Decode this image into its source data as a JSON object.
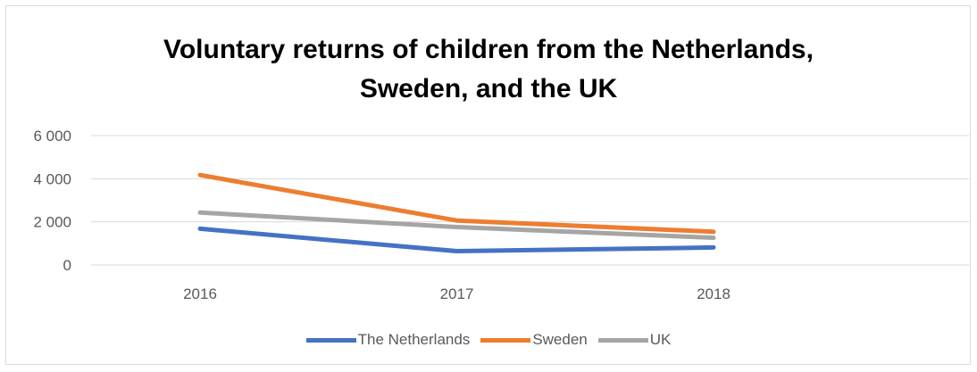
{
  "chart_data": {
    "type": "line",
    "title_line1": "Voluntary returns of children from the Netherlands,",
    "title_line2": "Sweden, and the UK",
    "categories": [
      "2016",
      "2017",
      "2018"
    ],
    "ylim": [
      0,
      6000
    ],
    "y_ticks": [
      {
        "value": 0,
        "label": "0"
      },
      {
        "value": 2000,
        "label": "2 000"
      },
      {
        "value": 4000,
        "label": "4 000"
      },
      {
        "value": 6000,
        "label": "6 000"
      }
    ],
    "grid": true,
    "legend_position": "bottom",
    "series": [
      {
        "name": "The Netherlands",
        "color": "#4472c4",
        "values": [
          1680,
          640,
          810
        ]
      },
      {
        "name": "Sweden",
        "color": "#ed7d31",
        "values": [
          4170,
          2060,
          1540
        ]
      },
      {
        "name": "UK",
        "color": "#a5a5a5",
        "values": [
          2430,
          1760,
          1260
        ]
      }
    ]
  }
}
